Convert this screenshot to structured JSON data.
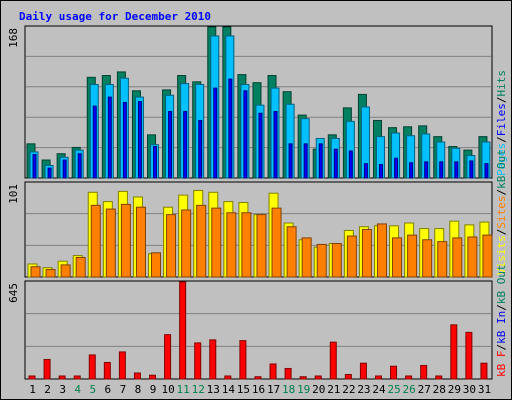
{
  "chart_data": {
    "type": "bar",
    "title": "Daily usage for December 2010",
    "categories": [
      "1",
      "2",
      "3",
      "4",
      "5",
      "6",
      "7",
      "8",
      "9",
      "10",
      "11",
      "12",
      "13",
      "14",
      "15",
      "16",
      "17",
      "18",
      "19",
      "20",
      "21",
      "22",
      "23",
      "24",
      "25",
      "26",
      "27",
      "28",
      "29",
      "30",
      "31"
    ],
    "weekend_days": [
      4,
      5,
      11,
      12,
      18,
      19,
      25,
      26
    ],
    "colors": {
      "background": "#c0c0c0",
      "grid": "#808080",
      "title": "#0000ff",
      "pages": "#008060",
      "files": "#00c0ff",
      "hits": "#00ff80",
      "visits": "#ffff00",
      "sites": "#ff8000",
      "kb_in": "#0000ff",
      "kb_out": "#008060",
      "kb_f": "#ff0000",
      "weekday_tick": "#000000",
      "weekend_tick": "#00804a"
    },
    "panels": [
      {
        "ymax_label": "168",
        "ylim": [
          0,
          168
        ],
        "legend": [
          {
            "text": "Pages",
            "color": "#00c0ff"
          },
          {
            "text": "/",
            "color": "#000000"
          },
          {
            "text": "Files",
            "color": "#0000ff"
          },
          {
            "text": "/",
            "color": "#000000"
          },
          {
            "text": "Hits",
            "color": "#008060"
          }
        ],
        "series": [
          {
            "name": "Hits",
            "color": "#008060",
            "values": [
              38,
              20,
              27,
              34,
              112,
              114,
              118,
              97,
              48,
              98,
              114,
              107,
              168,
              168,
              115,
              106,
              114,
              96,
              70,
              32,
              48,
              78,
              93,
              64,
              56,
              57,
              58,
              46,
              35,
              31,
              46
            ]
          },
          {
            "name": "Files",
            "color": "#00c0ff",
            "values": [
              29,
              14,
              23,
              31,
              104,
              104,
              111,
              90,
              37,
              92,
              105,
              104,
              158,
              158,
              104,
              81,
              100,
              82,
              66,
              44,
              44,
              63,
              79,
              46,
              50,
              47,
              49,
              40,
              33,
              25,
              40
            ]
          },
          {
            "name": "Pages",
            "color": "#0000ff",
            "values": [
              26,
              11,
              20,
              27,
              80,
              90,
              84,
              85,
              35,
              74,
              74,
              64,
              100,
              110,
              97,
              72,
              74,
              38,
              38,
              38,
              32,
              30,
              16,
              15,
              22,
              17,
              18,
              18,
              18,
              19,
              16
            ]
          }
        ]
      },
      {
        "ymax_label": "101",
        "ylim": [
          0,
          101
        ],
        "legend": [
          {
            "text": "Visits",
            "color": "#ffff00"
          },
          {
            "text": "/",
            "color": "#000000"
          },
          {
            "text": "Sites",
            "color": "#ff8000"
          },
          {
            "text": "/",
            "color": "#000000"
          },
          {
            "text": "kB Out",
            "color": "#008060"
          }
        ],
        "series": [
          {
            "name": "Visits",
            "color": "#ffff00",
            "values": [
              14,
              10,
              17,
              23,
              91,
              81,
              92,
              86,
              25,
              75,
              88,
              93,
              91,
              81,
              80,
              67,
              90,
              58,
              40,
              32,
              36,
              50,
              54,
              55,
              55,
              58,
              52,
              52,
              60,
              56,
              59
            ]
          },
          {
            "name": "Sites",
            "color": "#ff8000",
            "values": [
              11,
              8,
              13,
              21,
              77,
              73,
              78,
              75,
              26,
              67,
              72,
              77,
              74,
              69,
              69,
              67,
              74,
              54,
              42,
              35,
              36,
              44,
              51,
              57,
              42,
              45,
              40,
              38,
              42,
              43,
              45
            ]
          }
        ]
      },
      {
        "ymax_label": "645",
        "ylim": [
          0,
          645
        ],
        "legend": [
          {
            "text": "kB F",
            "color": "#ff0000"
          },
          {
            "text": "/",
            "color": "#000000"
          },
          {
            "text": "kB In",
            "color": "#0000ff"
          },
          {
            "text": "/",
            "color": "#000000"
          },
          {
            "text": "kB Out",
            "color": "#008060"
          }
        ],
        "series": [
          {
            "name": "kB F",
            "color": "#ff0000",
            "values": [
              20,
              130,
              20,
              20,
              160,
              110,
              180,
              40,
              25,
              295,
              645,
              240,
              260,
              20,
              255,
              15,
              100,
              70,
              15,
              20,
              245,
              30,
              105,
              20,
              85,
              20,
              90,
              20,
              360,
              310,
              105
            ]
          }
        ]
      }
    ]
  }
}
